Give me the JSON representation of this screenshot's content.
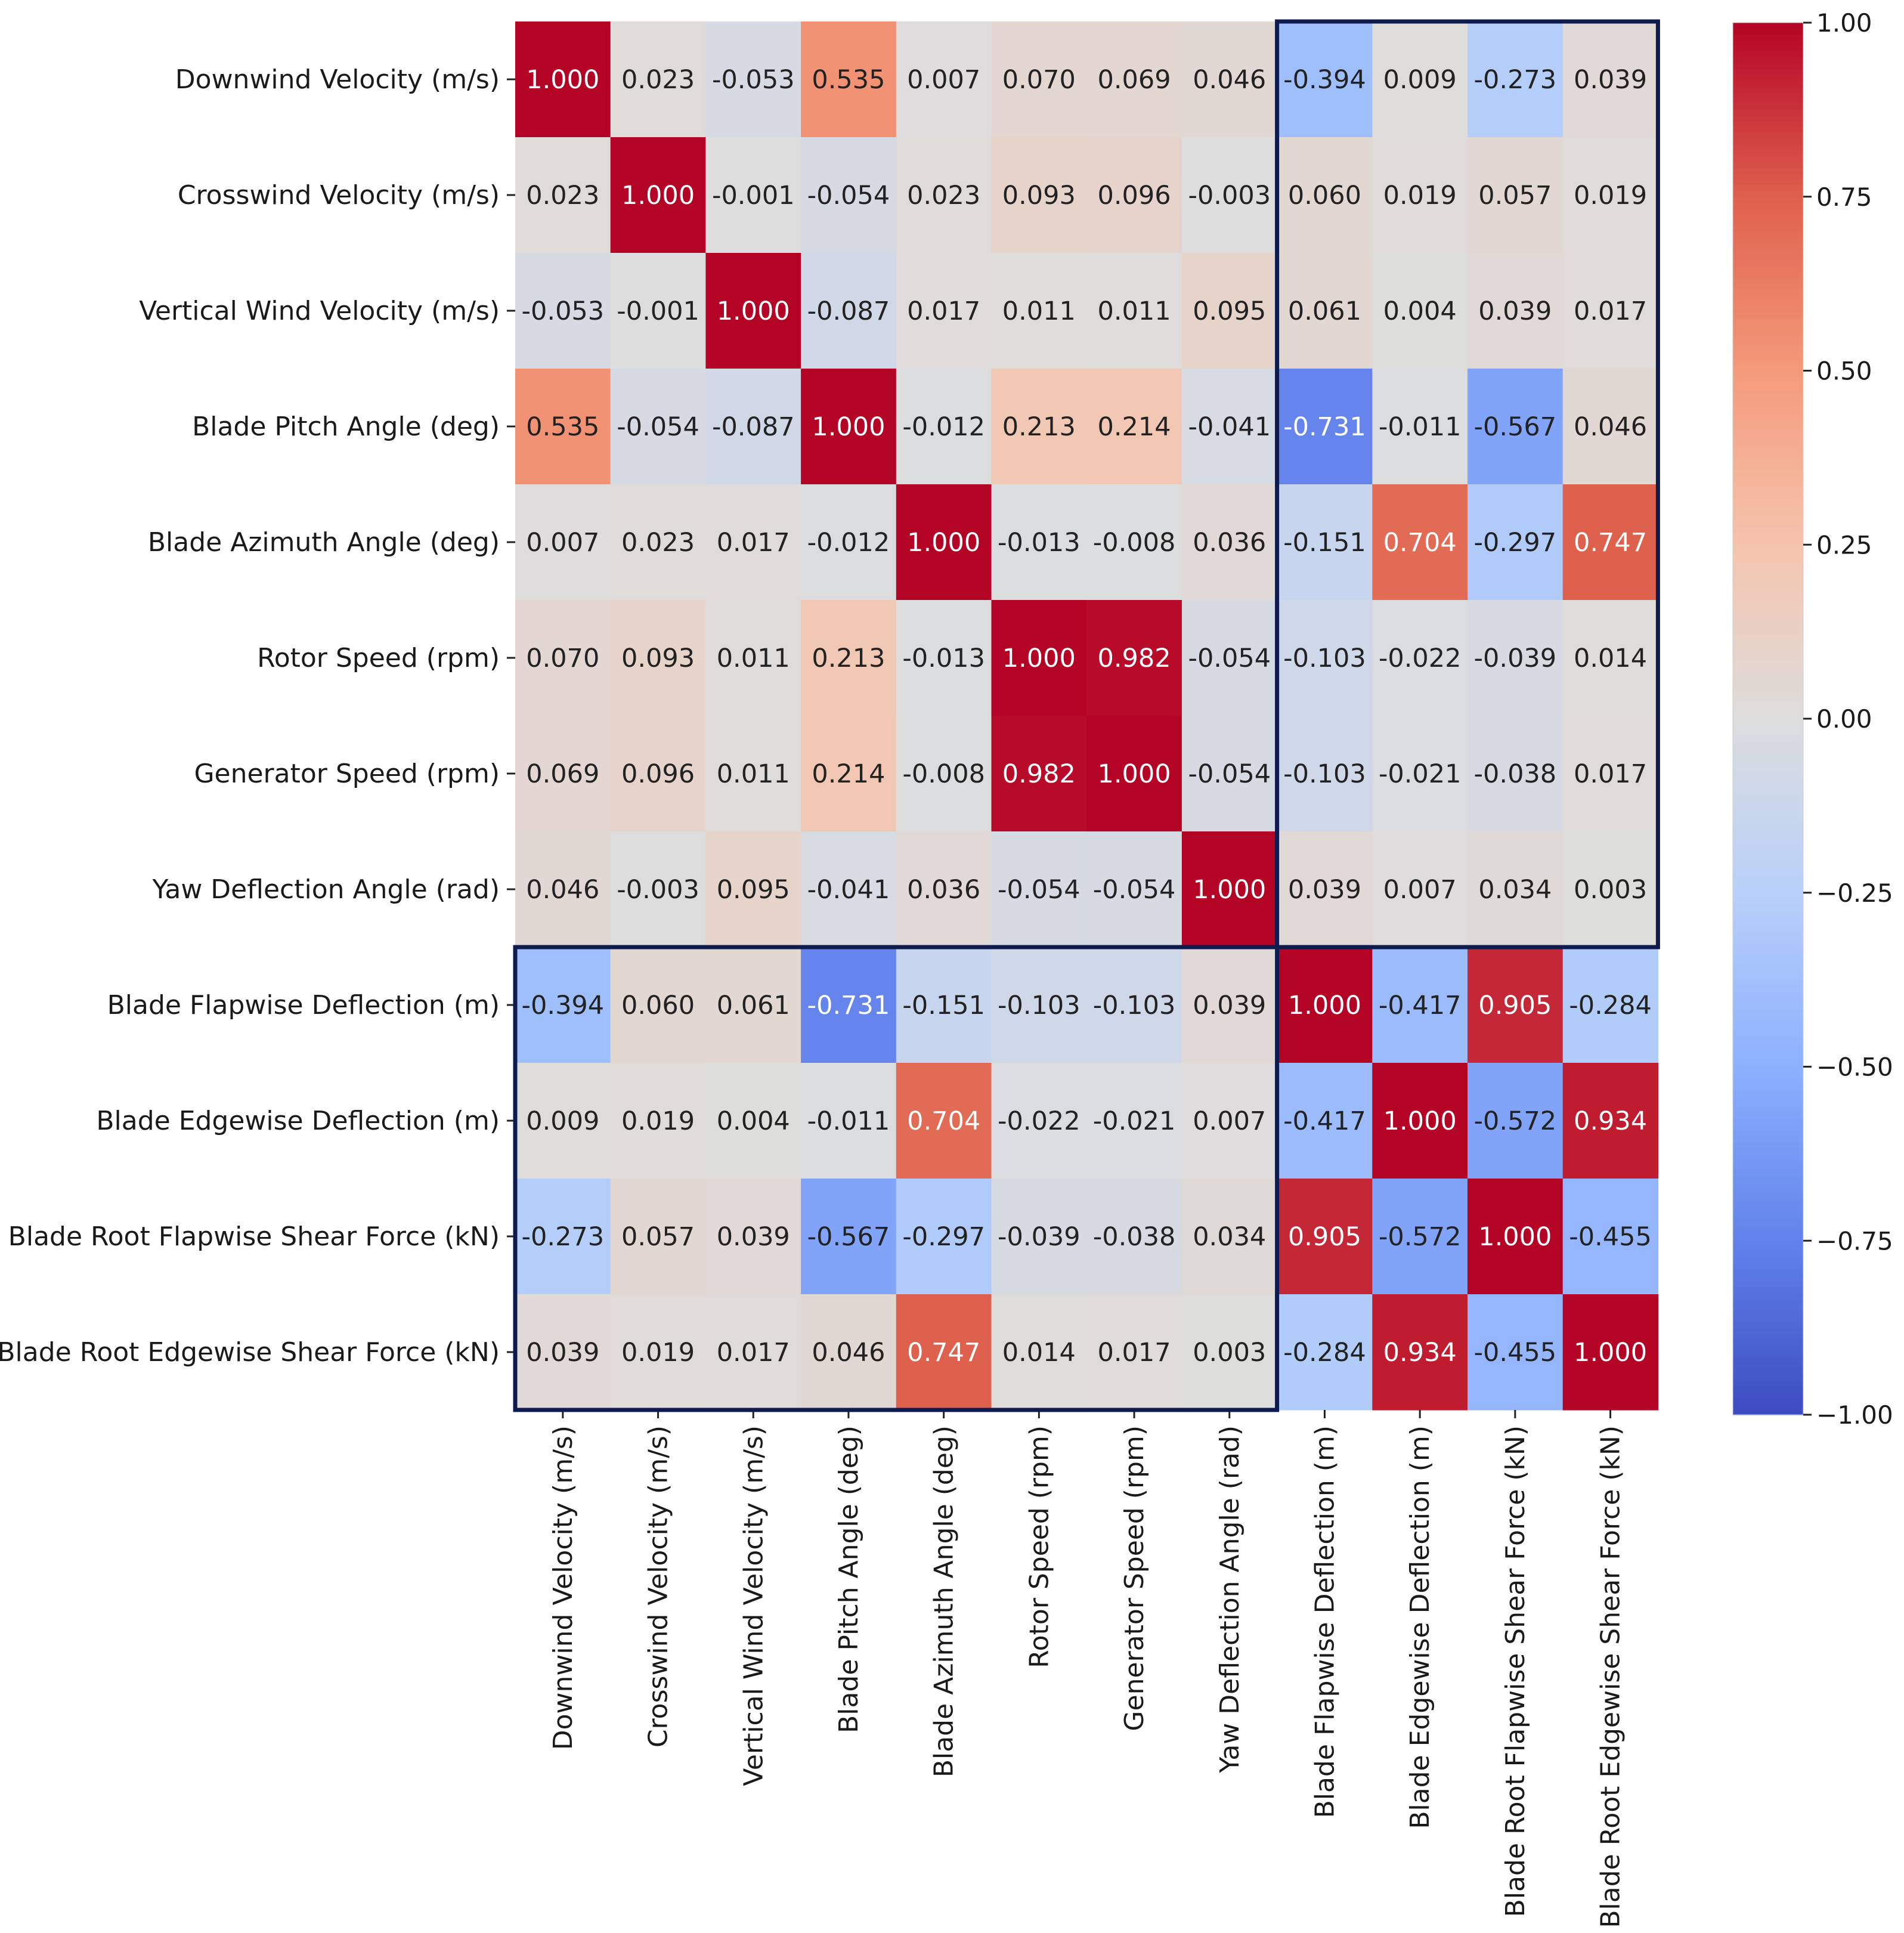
{
  "chart_data": {
    "type": "heatmap",
    "title": "",
    "colormap": "coolwarm",
    "vmin": -1.0,
    "vmax": 1.0,
    "value_format": "3 decimals",
    "labels": [
      "Downwind Velocity (m/s)",
      "Crosswind Velocity (m/s)",
      "Vertical Wind Velocity (m/s)",
      "Blade Pitch Angle (deg)",
      "Blade Azimuth Angle (deg)",
      "Rotor Speed (rpm)",
      "Generator Speed (rpm)",
      "Yaw Deflection Angle (rad)",
      "Blade Flapwise Deflection (m)",
      "Blade Edgewise Deflection (m)",
      "Blade Root Flapwise Shear Force (kN)",
      "Blade Root Edgewise Shear Force (kN)"
    ],
    "matrix": [
      [
        1.0,
        0.023,
        -0.053,
        0.535,
        0.007,
        0.07,
        0.069,
        0.046,
        -0.394,
        0.009,
        -0.273,
        0.039
      ],
      [
        0.023,
        1.0,
        -0.001,
        -0.054,
        0.023,
        0.093,
        0.096,
        -0.003,
        0.06,
        0.019,
        0.057,
        0.019
      ],
      [
        -0.053,
        -0.001,
        1.0,
        -0.087,
        0.017,
        0.011,
        0.011,
        0.095,
        0.061,
        0.004,
        0.039,
        0.017
      ],
      [
        0.535,
        -0.054,
        -0.087,
        1.0,
        -0.012,
        0.213,
        0.214,
        -0.041,
        -0.731,
        -0.011,
        -0.567,
        0.046
      ],
      [
        0.007,
        0.023,
        0.017,
        -0.012,
        1.0,
        -0.013,
        -0.008,
        0.036,
        -0.151,
        0.704,
        -0.297,
        0.747
      ],
      [
        0.07,
        0.093,
        0.011,
        0.213,
        -0.013,
        1.0,
        0.982,
        -0.054,
        -0.103,
        -0.022,
        -0.039,
        0.014
      ],
      [
        0.069,
        0.096,
        0.011,
        0.214,
        -0.008,
        0.982,
        1.0,
        -0.054,
        -0.103,
        -0.021,
        -0.038,
        0.017
      ],
      [
        0.046,
        -0.003,
        0.095,
        -0.041,
        0.036,
        -0.054,
        -0.054,
        1.0,
        0.039,
        0.007,
        0.034,
        0.003
      ],
      [
        -0.394,
        0.06,
        0.061,
        -0.731,
        -0.151,
        -0.103,
        -0.103,
        0.039,
        1.0,
        -0.417,
        0.905,
        -0.284
      ],
      [
        0.009,
        0.019,
        0.004,
        -0.011,
        0.704,
        -0.022,
        -0.021,
        0.007,
        -0.417,
        1.0,
        -0.572,
        0.934
      ],
      [
        -0.273,
        0.057,
        0.039,
        -0.567,
        -0.297,
        -0.039,
        -0.038,
        0.034,
        0.905,
        -0.572,
        1.0,
        -0.455
      ],
      [
        0.039,
        0.019,
        0.017,
        0.046,
        0.747,
        0.014,
        0.017,
        0.003,
        -0.284,
        0.934,
        -0.455,
        1.0
      ]
    ],
    "colorbar": {
      "ticks": [
        1.0,
        0.75,
        0.5,
        0.25,
        0.0,
        -0.25,
        -0.5,
        -0.75,
        -1.0
      ],
      "tick_labels": [
        "1.00",
        "0.75",
        "0.50",
        "0.25",
        "0.00",
        "−0.25",
        "−0.50",
        "−0.75",
        "−1.00"
      ]
    },
    "highlight_blocks": [
      {
        "rows": [
          0,
          7
        ],
        "cols": [
          8,
          11
        ],
        "color": "#0d1b4f"
      },
      {
        "rows": [
          8,
          11
        ],
        "cols": [
          0,
          7
        ],
        "color": "#0d1b4f"
      }
    ]
  }
}
